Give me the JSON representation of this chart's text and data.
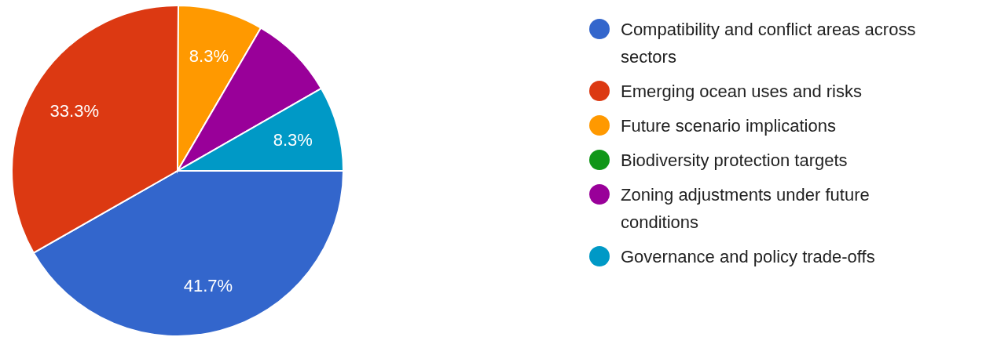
{
  "chart_data": {
    "type": "pie",
    "categories": [
      "Compatibility and conflict areas across sectors",
      "Emerging ocean uses and risks",
      "Future scenario implications",
      "Biodiversity protection targets",
      "Zoning adjustments under future conditions",
      "Governance and policy trade-offs"
    ],
    "values": [
      41.7,
      33.3,
      8.3,
      0,
      8.3,
      8.3
    ],
    "colors": [
      "#3366cc",
      "#dc3912",
      "#ff9900",
      "#109618",
      "#990099",
      "#0099c6"
    ],
    "value_labels": [
      "41.7%",
      "33.3%",
      "8.3%",
      null,
      null,
      "8.3%"
    ],
    "legend": "right"
  }
}
